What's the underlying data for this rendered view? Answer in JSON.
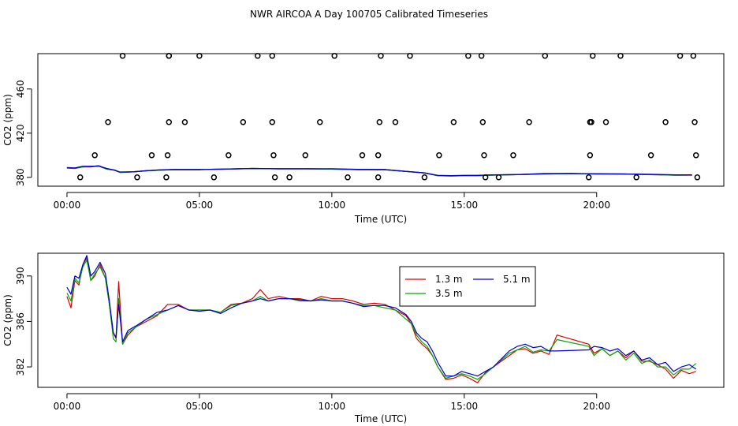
{
  "page_title": "NWR AIRCOA A  Day 100705  Calibrated Timeseries",
  "colors": {
    "red": "#dd0000",
    "green": "#00aa00",
    "blue": "#0000cc",
    "black": "#000000"
  },
  "chart_data": [
    {
      "type": "scatter",
      "panel": "top",
      "xlabel": "Time (UTC)",
      "ylabel": "CO2 (ppm)",
      "xlim": [
        -1.1,
        24.8
      ],
      "ylim": [
        372,
        492
      ],
      "x_ticks": [
        0,
        5,
        10,
        15,
        20
      ],
      "x_tick_labels": [
        "00:00",
        "05:00",
        "10:00",
        "15:00",
        "20:00"
      ],
      "y_ticks": [
        380,
        420,
        460
      ],
      "y_tick_labels": [
        "380",
        "420",
        "460"
      ],
      "calibration_points": {
        "x": [
          0.5,
          1.05,
          1.55,
          2.1,
          2.65,
          3.2,
          3.75,
          3.8,
          3.85,
          3.85,
          3.85,
          4.45,
          5.0,
          5.55,
          6.1,
          6.65,
          7.2,
          7.75,
          7.75,
          7.8,
          7.85,
          8.4,
          9.0,
          9.55,
          10.1,
          10.6,
          11.15,
          11.75,
          11.75,
          11.8,
          11.85,
          12.4,
          12.95,
          13.5,
          14.05,
          14.6,
          15.15,
          15.65,
          15.7,
          15.75,
          15.8,
          16.3,
          16.85,
          17.45,
          18.05,
          19.7,
          19.75,
          19.75,
          19.8,
          19.85,
          20.35,
          20.9,
          21.5,
          22.05,
          22.6,
          23.15,
          23.65,
          23.7,
          23.75,
          23.8
        ],
        "y": [
          380,
          400,
          430,
          490,
          380,
          400,
          380,
          400,
          430,
          490,
          490,
          430,
          490,
          380,
          400,
          430,
          490,
          490,
          430,
          400,
          380,
          380,
          400,
          430,
          490,
          380,
          400,
          380,
          400,
          430,
          490,
          430,
          490,
          380,
          400,
          430,
          490,
          490,
          430,
          400,
          380,
          380,
          400,
          430,
          490,
          380,
          400,
          430,
          430,
          490,
          430,
          490,
          380,
          400,
          430,
          490,
          490,
          430,
          400,
          380
        ]
      },
      "series": [
        {
          "name": "",
          "color": "red",
          "x": [
            0,
            0.3,
            0.6,
            0.9,
            1.2,
            1.5,
            1.8,
            2.0,
            2.5,
            3.0,
            3.5,
            4.0,
            5.0,
            6.0,
            7.0,
            8.0,
            9.0,
            10.0,
            11.0,
            12.0,
            12.5,
            13.0,
            13.5,
            14.0,
            14.5,
            15.0,
            15.5,
            16.0,
            17.0,
            18.0,
            19.0,
            20.0,
            21.0,
            22.0,
            23.0,
            23.6
          ],
          "y": [
            388.5,
            388.0,
            389.5,
            389.5,
            390.5,
            387.5,
            386.5,
            384.5,
            385.0,
            386.0,
            386.5,
            387.0,
            387.0,
            387.5,
            388.0,
            387.8,
            387.8,
            387.5,
            387.0,
            387.0,
            386.0,
            385.0,
            384.0,
            381.5,
            381.2,
            381.5,
            381.5,
            382.0,
            382.5,
            383.5,
            383.5,
            383.0,
            383.0,
            382.5,
            382.0,
            382.0
          ]
        },
        {
          "name": "",
          "color": "green",
          "x": [
            0,
            0.3,
            0.6,
            0.9,
            1.2,
            1.5,
            1.8,
            2.0,
            2.5,
            3.0,
            3.5,
            4.0,
            5.0,
            6.0,
            7.0,
            8.0,
            9.0,
            10.0,
            11.0,
            12.0,
            12.5,
            13.0,
            13.5,
            14.0,
            14.5,
            15.0,
            15.5,
            16.0,
            17.0,
            18.0,
            19.0,
            20.0,
            21.0,
            22.0,
            23.0,
            23.6
          ],
          "y": [
            388.5,
            388.2,
            389.5,
            389.8,
            390.2,
            387.5,
            386.5,
            384.5,
            385.0,
            386.0,
            386.5,
            387.0,
            387.0,
            387.5,
            388.0,
            387.8,
            387.8,
            387.5,
            387.0,
            387.0,
            386.0,
            385.0,
            384.0,
            381.5,
            381.2,
            381.5,
            381.5,
            382.0,
            382.5,
            383.0,
            383.5,
            383.0,
            383.0,
            382.5,
            382.0,
            382.2
          ]
        },
        {
          "name": "",
          "color": "blue",
          "x": [
            0,
            0.3,
            0.6,
            0.9,
            1.2,
            1.5,
            1.8,
            2.0,
            2.5,
            3.0,
            3.5,
            4.0,
            5.0,
            6.0,
            7.0,
            8.0,
            9.0,
            10.0,
            11.0,
            12.0,
            12.5,
            13.0,
            13.5,
            14.0,
            14.5,
            15.0,
            15.5,
            16.0,
            17.0,
            18.0,
            19.0,
            20.0,
            21.0,
            22.0,
            23.0,
            23.6
          ],
          "y": [
            388.8,
            388.5,
            390.0,
            390.0,
            390.2,
            388.0,
            386.5,
            384.8,
            385.0,
            386.0,
            386.8,
            387.0,
            387.0,
            387.5,
            388.0,
            387.8,
            387.8,
            387.8,
            387.2,
            387.0,
            386.0,
            385.0,
            384.0,
            381.8,
            381.5,
            381.8,
            381.8,
            382.2,
            382.5,
            383.2,
            383.5,
            383.2,
            383.0,
            382.8,
            382.2,
            382.2
          ]
        }
      ]
    },
    {
      "type": "line",
      "panel": "bottom",
      "xlabel": "Time (UTC)",
      "ylabel": "CO2 (ppm)",
      "xlim": [
        -1.1,
        24.8
      ],
      "ylim": [
        380.2,
        392.0
      ],
      "x_ticks": [
        0,
        5,
        10,
        15,
        20
      ],
      "x_tick_labels": [
        "00:00",
        "05:00",
        "10:00",
        "15:00",
        "20:00"
      ],
      "y_ticks": [
        382,
        386,
        390
      ],
      "y_tick_labels": [
        "382",
        "386",
        "390"
      ],
      "legend": {
        "position": "top-right",
        "columns": 2
      },
      "series": [
        {
          "name": "1.3 m",
          "color": "red",
          "x": [
            0,
            0.15,
            0.3,
            0.45,
            0.6,
            0.75,
            0.9,
            1.05,
            1.25,
            1.45,
            1.6,
            1.75,
            1.85,
            1.95,
            2.1,
            2.3,
            2.6,
            3.0,
            3.4,
            3.8,
            4.2,
            4.6,
            5.0,
            5.4,
            5.8,
            6.2,
            6.6,
            7.0,
            7.3,
            7.6,
            8.0,
            8.4,
            8.8,
            9.2,
            9.6,
            10.0,
            10.4,
            10.8,
            11.2,
            11.6,
            12.0,
            12.4,
            12.8,
            13.0,
            13.2,
            13.4,
            13.6,
            13.8,
            14.0,
            14.3,
            14.6,
            14.9,
            15.2,
            15.5,
            15.8,
            16.1,
            16.4,
            16.7,
            17.0,
            17.3,
            17.6,
            17.9,
            18.2,
            18.5,
            19.7,
            19.9,
            20.2,
            20.5,
            20.8,
            21.1,
            21.4,
            21.7,
            22.0,
            22.3,
            22.6,
            22.9,
            23.2,
            23.5,
            23.75
          ],
          "y": [
            388.2,
            387.2,
            389.6,
            389.2,
            391.0,
            391.6,
            389.6,
            390.0,
            391.0,
            389.8,
            387.5,
            385.0,
            384.5,
            389.5,
            384.0,
            384.8,
            385.5,
            386.0,
            386.5,
            387.5,
            387.5,
            387.0,
            387.0,
            387.0,
            386.8,
            387.5,
            387.6,
            388.0,
            388.8,
            388.0,
            388.2,
            388.0,
            388.0,
            387.8,
            388.2,
            388.0,
            388.0,
            387.8,
            387.5,
            387.6,
            387.5,
            387.0,
            386.5,
            385.8,
            384.5,
            384.0,
            383.6,
            383.0,
            382.0,
            380.9,
            381.0,
            381.3,
            381.0,
            380.6,
            381.5,
            382.0,
            382.5,
            383.0,
            383.5,
            383.6,
            383.2,
            383.4,
            383.1,
            384.8,
            384.0,
            383.2,
            383.6,
            383.0,
            383.4,
            382.8,
            383.4,
            382.5,
            382.5,
            382.2,
            381.8,
            381.0,
            381.7,
            381.4,
            381.6
          ]
        },
        {
          "name": "3.5 m",
          "color": "green",
          "x": [
            0,
            0.15,
            0.3,
            0.45,
            0.6,
            0.75,
            0.9,
            1.05,
            1.25,
            1.45,
            1.6,
            1.75,
            1.85,
            1.95,
            2.1,
            2.3,
            2.6,
            3.0,
            3.4,
            3.8,
            4.2,
            4.6,
            5.0,
            5.4,
            5.8,
            6.2,
            6.6,
            7.0,
            7.3,
            7.6,
            8.0,
            8.4,
            8.8,
            9.2,
            9.6,
            10.0,
            10.4,
            10.8,
            11.2,
            11.6,
            12.0,
            12.4,
            12.8,
            13.0,
            13.2,
            13.4,
            13.6,
            13.8,
            14.0,
            14.3,
            14.6,
            14.9,
            15.2,
            15.5,
            15.8,
            16.1,
            16.4,
            16.7,
            17.0,
            17.3,
            17.6,
            17.9,
            18.2,
            18.5,
            19.7,
            19.9,
            20.2,
            20.5,
            20.8,
            21.1,
            21.4,
            21.7,
            22.0,
            22.3,
            22.6,
            22.9,
            23.2,
            23.5,
            23.75
          ],
          "y": [
            388.5,
            387.8,
            389.8,
            389.4,
            390.8,
            391.4,
            389.6,
            390.2,
            390.8,
            389.8,
            387.5,
            384.5,
            384.2,
            388.0,
            384.0,
            385.0,
            385.5,
            386.2,
            386.6,
            387.0,
            387.4,
            387.0,
            387.0,
            387.0,
            386.8,
            387.4,
            387.6,
            387.8,
            388.2,
            387.8,
            388.0,
            388.0,
            387.8,
            387.8,
            388.0,
            387.8,
            387.8,
            387.6,
            387.4,
            387.4,
            387.2,
            387.0,
            386.2,
            385.8,
            384.8,
            384.2,
            383.8,
            383.0,
            382.0,
            381.0,
            381.2,
            381.4,
            381.2,
            380.9,
            381.4,
            382.0,
            382.6,
            383.2,
            383.5,
            383.8,
            383.3,
            383.5,
            383.4,
            384.4,
            383.8,
            383.0,
            383.6,
            383.0,
            383.4,
            382.6,
            383.2,
            382.3,
            382.6,
            382.0,
            382.0,
            381.3,
            381.8,
            381.8,
            382.3
          ]
        },
        {
          "name": "5.1 m",
          "color": "blue",
          "x": [
            0,
            0.15,
            0.3,
            0.45,
            0.6,
            0.75,
            0.9,
            1.05,
            1.25,
            1.45,
            1.6,
            1.75,
            1.85,
            1.95,
            2.1,
            2.3,
            2.6,
            3.0,
            3.4,
            3.8,
            4.2,
            4.6,
            5.0,
            5.4,
            5.8,
            6.2,
            6.6,
            7.0,
            7.3,
            7.6,
            8.0,
            8.4,
            8.8,
            9.2,
            9.6,
            10.0,
            10.4,
            10.8,
            11.2,
            11.6,
            12.0,
            12.4,
            12.8,
            13.0,
            13.2,
            13.4,
            13.6,
            13.8,
            14.0,
            14.3,
            14.6,
            14.9,
            15.2,
            15.5,
            15.8,
            16.1,
            16.4,
            16.7,
            17.0,
            17.3,
            17.6,
            17.9,
            18.2,
            18.5,
            19.7,
            19.9,
            20.2,
            20.5,
            20.8,
            21.1,
            21.4,
            21.7,
            22.0,
            22.3,
            22.6,
            22.9,
            23.2,
            23.5,
            23.75
          ],
          "y": [
            389.0,
            388.4,
            390.0,
            389.8,
            391.0,
            391.8,
            390.0,
            390.4,
            391.2,
            390.2,
            387.8,
            385.0,
            384.6,
            387.5,
            384.2,
            385.2,
            385.6,
            386.2,
            386.8,
            387.0,
            387.4,
            387.0,
            386.9,
            387.0,
            386.7,
            387.2,
            387.6,
            387.8,
            388.0,
            387.8,
            388.0,
            388.0,
            387.9,
            387.8,
            387.9,
            387.8,
            387.8,
            387.6,
            387.3,
            387.4,
            387.4,
            387.2,
            386.6,
            386.0,
            385.0,
            384.5,
            384.2,
            383.4,
            382.4,
            381.2,
            381.2,
            381.6,
            381.4,
            381.2,
            381.6,
            382.0,
            382.7,
            383.4,
            383.8,
            384.0,
            383.7,
            383.8,
            383.4,
            383.4,
            383.5,
            383.8,
            383.7,
            383.4,
            383.6,
            383.0,
            383.4,
            382.6,
            382.8,
            382.2,
            382.4,
            381.6,
            382.0,
            382.2,
            381.8
          ]
        }
      ]
    }
  ]
}
